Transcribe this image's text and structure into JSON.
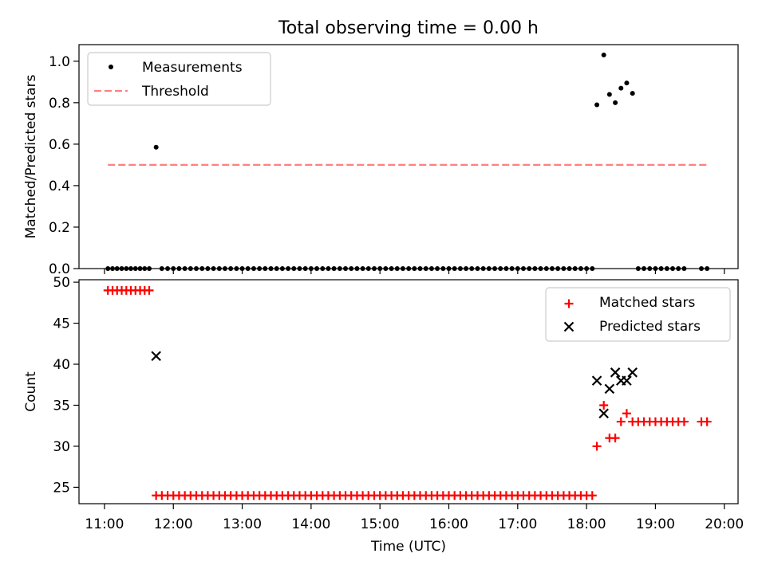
{
  "figure": {
    "title": "Total observing time = 0.00 h"
  },
  "chart_data": [
    {
      "type": "scatter",
      "panel": "top",
      "title": "Total observing time = 0.00 h",
      "xlabel": "",
      "ylabel": "Matched/Predicted stars",
      "xlim": [
        10.63,
        20.2
      ],
      "ylim": [
        0,
        1.08
      ],
      "yticks": [
        0.0,
        0.2,
        0.4,
        0.6,
        0.8,
        1.0
      ],
      "ytick_labels": [
        "0.0",
        "0.2",
        "0.4",
        "0.6",
        "0.8",
        "1.0"
      ],
      "legend_location": "upper left",
      "series": [
        {
          "name": "Measurements",
          "kind": "scatter",
          "color": "#000000",
          "points": [
            [
              11.05,
              0
            ],
            [
              11.117,
              0
            ],
            [
              11.183,
              0
            ],
            [
              11.25,
              0
            ],
            [
              11.317,
              0
            ],
            [
              11.383,
              0
            ],
            [
              11.45,
              0
            ],
            [
              11.517,
              0
            ],
            [
              11.583,
              0
            ],
            [
              11.65,
              0
            ],
            [
              11.75,
              0.585
            ],
            [
              11.833,
              0
            ],
            [
              11.917,
              0
            ],
            [
              12.0,
              0
            ],
            [
              12.083,
              0
            ],
            [
              12.167,
              0
            ],
            [
              12.25,
              0
            ],
            [
              12.333,
              0
            ],
            [
              12.417,
              0
            ],
            [
              12.5,
              0
            ],
            [
              12.583,
              0
            ],
            [
              12.667,
              0
            ],
            [
              12.75,
              0
            ],
            [
              12.833,
              0
            ],
            [
              12.917,
              0
            ],
            [
              13.0,
              0
            ],
            [
              13.083,
              0
            ],
            [
              13.167,
              0
            ],
            [
              13.25,
              0
            ],
            [
              13.333,
              0
            ],
            [
              13.417,
              0
            ],
            [
              13.5,
              0
            ],
            [
              13.583,
              0
            ],
            [
              13.667,
              0
            ],
            [
              13.75,
              0
            ],
            [
              13.833,
              0
            ],
            [
              13.917,
              0
            ],
            [
              14.0,
              0
            ],
            [
              14.083,
              0
            ],
            [
              14.167,
              0
            ],
            [
              14.25,
              0
            ],
            [
              14.333,
              0
            ],
            [
              14.417,
              0
            ],
            [
              14.5,
              0
            ],
            [
              14.583,
              0
            ],
            [
              14.667,
              0
            ],
            [
              14.75,
              0
            ],
            [
              14.833,
              0
            ],
            [
              14.917,
              0
            ],
            [
              15.0,
              0
            ],
            [
              15.083,
              0
            ],
            [
              15.167,
              0
            ],
            [
              15.25,
              0
            ],
            [
              15.333,
              0
            ],
            [
              15.417,
              0
            ],
            [
              15.5,
              0
            ],
            [
              15.583,
              0
            ],
            [
              15.667,
              0
            ],
            [
              15.75,
              0
            ],
            [
              15.833,
              0
            ],
            [
              15.917,
              0
            ],
            [
              16.0,
              0
            ],
            [
              16.083,
              0
            ],
            [
              16.167,
              0
            ],
            [
              16.25,
              0
            ],
            [
              16.333,
              0
            ],
            [
              16.417,
              0
            ],
            [
              16.5,
              0
            ],
            [
              16.583,
              0
            ],
            [
              16.667,
              0
            ],
            [
              16.75,
              0
            ],
            [
              16.833,
              0
            ],
            [
              16.917,
              0
            ],
            [
              17.0,
              0
            ],
            [
              17.083,
              0
            ],
            [
              17.167,
              0
            ],
            [
              17.25,
              0
            ],
            [
              17.333,
              0
            ],
            [
              17.417,
              0
            ],
            [
              17.5,
              0
            ],
            [
              17.583,
              0
            ],
            [
              17.667,
              0
            ],
            [
              17.75,
              0
            ],
            [
              17.833,
              0
            ],
            [
              17.917,
              0
            ],
            [
              18.0,
              0
            ],
            [
              18.083,
              0
            ],
            [
              18.15,
              0.79
            ],
            [
              18.25,
              1.03
            ],
            [
              18.333,
              0.84
            ],
            [
              18.417,
              0.8
            ],
            [
              18.5,
              0.87
            ],
            [
              18.583,
              0.895
            ],
            [
              18.667,
              0.845
            ],
            [
              18.75,
              0
            ],
            [
              18.833,
              0
            ],
            [
              18.917,
              0
            ],
            [
              19.0,
              0
            ],
            [
              19.083,
              0
            ],
            [
              19.167,
              0
            ],
            [
              19.25,
              0
            ],
            [
              19.333,
              0
            ],
            [
              19.417,
              0
            ],
            [
              19.667,
              0
            ],
            [
              19.75,
              0
            ]
          ]
        },
        {
          "name": "Threshold",
          "kind": "line",
          "style": "dashed",
          "color": "#ff7f7f",
          "x": [
            11.05,
            19.75
          ],
          "y": [
            0.5,
            0.5
          ]
        }
      ]
    },
    {
      "type": "scatter",
      "panel": "bottom",
      "xlabel": "Time (UTC)",
      "ylabel": "Count",
      "xlim": [
        10.63,
        20.2
      ],
      "ylim": [
        23.0,
        50.3
      ],
      "yticks": [
        25,
        30,
        35,
        40,
        45,
        50
      ],
      "ytick_labels": [
        "25",
        "30",
        "35",
        "40",
        "45",
        "50"
      ],
      "xticks": [
        11,
        12,
        13,
        14,
        15,
        16,
        17,
        18,
        19,
        20
      ],
      "xtick_labels": [
        "11:00",
        "12:00",
        "13:00",
        "14:00",
        "15:00",
        "16:00",
        "17:00",
        "18:00",
        "19:00",
        "20:00"
      ],
      "legend_location": "upper right",
      "series": [
        {
          "name": "Matched stars",
          "marker": "+",
          "color": "#ff0000",
          "points": [
            [
              11.05,
              49
            ],
            [
              11.117,
              49
            ],
            [
              11.183,
              49
            ],
            [
              11.25,
              49
            ],
            [
              11.317,
              49
            ],
            [
              11.383,
              49
            ],
            [
              11.45,
              49
            ],
            [
              11.517,
              49
            ],
            [
              11.583,
              49
            ],
            [
              11.65,
              49
            ],
            [
              11.75,
              24
            ],
            [
              11.833,
              24
            ],
            [
              11.917,
              24
            ],
            [
              12.0,
              24
            ],
            [
              12.083,
              24
            ],
            [
              12.167,
              24
            ],
            [
              12.25,
              24
            ],
            [
              12.333,
              24
            ],
            [
              12.417,
              24
            ],
            [
              12.5,
              24
            ],
            [
              12.583,
              24
            ],
            [
              12.667,
              24
            ],
            [
              12.75,
              24
            ],
            [
              12.833,
              24
            ],
            [
              12.917,
              24
            ],
            [
              13.0,
              24
            ],
            [
              13.083,
              24
            ],
            [
              13.167,
              24
            ],
            [
              13.25,
              24
            ],
            [
              13.333,
              24
            ],
            [
              13.417,
              24
            ],
            [
              13.5,
              24
            ],
            [
              13.583,
              24
            ],
            [
              13.667,
              24
            ],
            [
              13.75,
              24
            ],
            [
              13.833,
              24
            ],
            [
              13.917,
              24
            ],
            [
              14.0,
              24
            ],
            [
              14.083,
              24
            ],
            [
              14.167,
              24
            ],
            [
              14.25,
              24
            ],
            [
              14.333,
              24
            ],
            [
              14.417,
              24
            ],
            [
              14.5,
              24
            ],
            [
              14.583,
              24
            ],
            [
              14.667,
              24
            ],
            [
              14.75,
              24
            ],
            [
              14.833,
              24
            ],
            [
              14.917,
              24
            ],
            [
              15.0,
              24
            ],
            [
              15.083,
              24
            ],
            [
              15.167,
              24
            ],
            [
              15.25,
              24
            ],
            [
              15.333,
              24
            ],
            [
              15.417,
              24
            ],
            [
              15.5,
              24
            ],
            [
              15.583,
              24
            ],
            [
              15.667,
              24
            ],
            [
              15.75,
              24
            ],
            [
              15.833,
              24
            ],
            [
              15.917,
              24
            ],
            [
              16.0,
              24
            ],
            [
              16.083,
              24
            ],
            [
              16.167,
              24
            ],
            [
              16.25,
              24
            ],
            [
              16.333,
              24
            ],
            [
              16.417,
              24
            ],
            [
              16.5,
              24
            ],
            [
              16.583,
              24
            ],
            [
              16.667,
              24
            ],
            [
              16.75,
              24
            ],
            [
              16.833,
              24
            ],
            [
              16.917,
              24
            ],
            [
              17.0,
              24
            ],
            [
              17.083,
              24
            ],
            [
              17.167,
              24
            ],
            [
              17.25,
              24
            ],
            [
              17.333,
              24
            ],
            [
              17.417,
              24
            ],
            [
              17.5,
              24
            ],
            [
              17.583,
              24
            ],
            [
              17.667,
              24
            ],
            [
              17.75,
              24
            ],
            [
              17.833,
              24
            ],
            [
              17.917,
              24
            ],
            [
              18.0,
              24
            ],
            [
              18.083,
              24
            ],
            [
              18.15,
              30
            ],
            [
              18.25,
              35
            ],
            [
              18.333,
              31
            ],
            [
              18.417,
              31
            ],
            [
              18.5,
              33
            ],
            [
              18.583,
              34
            ],
            [
              18.667,
              33
            ],
            [
              18.75,
              33
            ],
            [
              18.833,
              33
            ],
            [
              18.917,
              33
            ],
            [
              19.0,
              33
            ],
            [
              19.083,
              33
            ],
            [
              19.167,
              33
            ],
            [
              19.25,
              33
            ],
            [
              19.333,
              33
            ],
            [
              19.417,
              33
            ],
            [
              19.667,
              33
            ],
            [
              19.75,
              33
            ]
          ]
        },
        {
          "name": "Predicted stars",
          "marker": "x",
          "color": "#000000",
          "points": [
            [
              11.75,
              41
            ],
            [
              18.15,
              38
            ],
            [
              18.25,
              34
            ],
            [
              18.333,
              37
            ],
            [
              18.417,
              39
            ],
            [
              18.5,
              38
            ],
            [
              18.583,
              38
            ],
            [
              18.667,
              39
            ]
          ]
        }
      ]
    }
  ]
}
